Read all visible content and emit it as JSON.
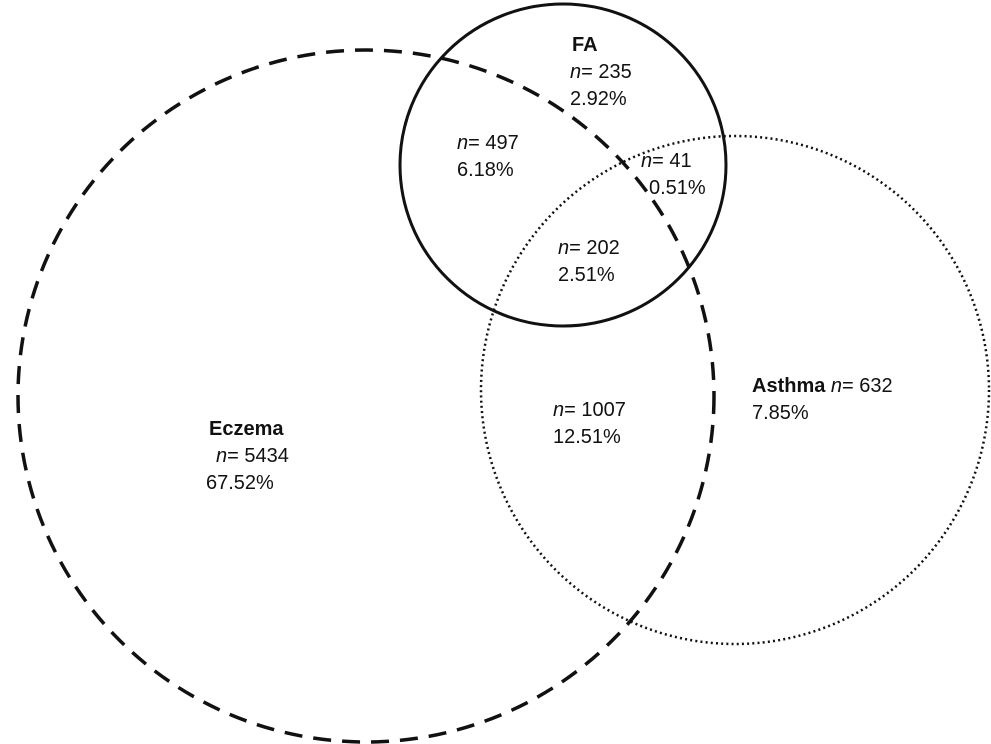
{
  "sets": {
    "eczema": {
      "name": "Eczema",
      "border_style": "dashed"
    },
    "fa": {
      "name": "FA",
      "border_style": "solid"
    },
    "asthma": {
      "name": "Asthma",
      "border_style": "dotted"
    }
  },
  "regions": {
    "eczema_only": {
      "n_prefix": "n",
      "n_suffix": "= 5434",
      "pct": "67.52%"
    },
    "fa_only": {
      "n_prefix": "n",
      "n_suffix": "= 235",
      "pct": "2.92%"
    },
    "asthma_only": {
      "n_prefix": "n",
      "n_suffix": "= 632",
      "pct": "7.85%"
    },
    "eczema_fa": {
      "n_prefix": "n",
      "n_suffix": "= 497",
      "pct": "6.18%"
    },
    "fa_asthma": {
      "n_prefix": "n",
      "n_suffix": "= 41",
      "pct": "0.51%"
    },
    "all_three": {
      "n_prefix": "n",
      "n_suffix": "= 202",
      "pct": "2.51%"
    },
    "eczema_asthma": {
      "n_prefix": "n",
      "n_suffix": "= 1007",
      "pct": "12.51%"
    }
  },
  "colors": {
    "stroke": "#111111",
    "background": "#ffffff"
  }
}
